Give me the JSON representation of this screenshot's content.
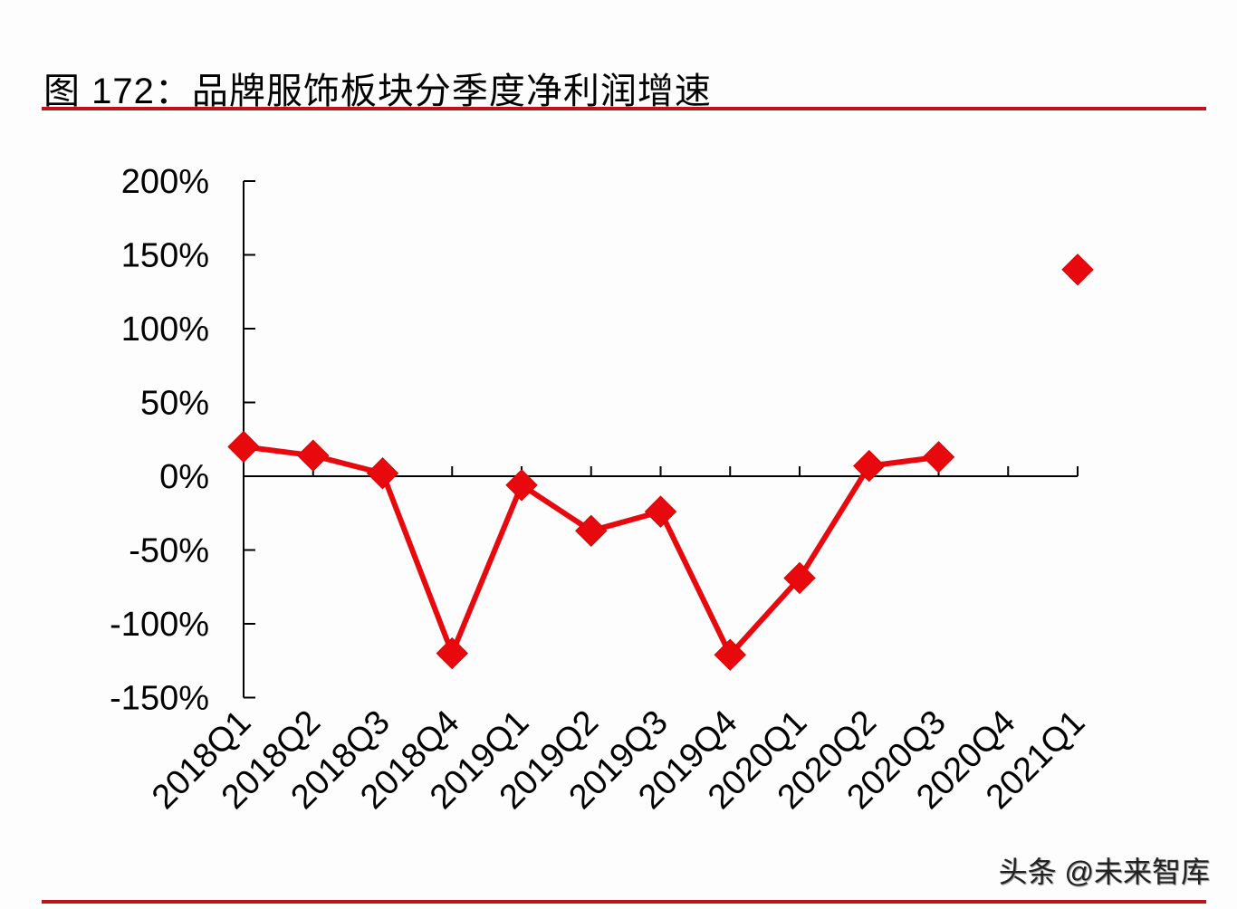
{
  "header": {
    "title": "图 172：品牌服饰板块分季度净利润增速"
  },
  "footer": {
    "watermark": "头条 @未来智库"
  },
  "colors": {
    "accent": "#c0141b",
    "series": "#e8090f",
    "axis": "#000000"
  },
  "chart_data": {
    "type": "line",
    "title": "图 172：品牌服饰板块分季度净利润增速",
    "xlabel": "",
    "ylabel": "",
    "categories": [
      "2018Q1",
      "2018Q2",
      "2018Q3",
      "2018Q4",
      "2019Q1",
      "2019Q2",
      "2019Q3",
      "2019Q4",
      "2020Q1",
      "2020Q2",
      "2020Q3",
      "2020Q4",
      "2021Q1"
    ],
    "series": [
      {
        "name": "净利润增速",
        "marker": "diamond",
        "values": [
          20,
          14,
          2,
          -120,
          -6,
          -37,
          -24,
          -121,
          -69,
          7,
          13,
          null,
          140
        ]
      }
    ],
    "ylim": [
      -150,
      200
    ],
    "yticks": [
      -150,
      -100,
      -50,
      0,
      50,
      100,
      150,
      200
    ],
    "ytick_labels": [
      "-150%",
      "-100%",
      "-50%",
      "0%",
      "50%",
      "100%",
      "150%",
      "200%"
    ],
    "grid": false,
    "legend": null
  }
}
